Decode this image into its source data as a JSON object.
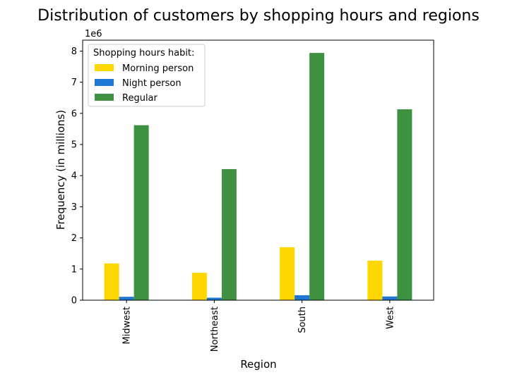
{
  "chart_data": {
    "type": "bar",
    "title": "Distribution of customers by shopping hours and regions",
    "xlabel": "Region",
    "ylabel": "Frequency (in millions)",
    "y_offset_label": "1e6",
    "categories": [
      "Midwest",
      "Northeast",
      "South",
      "West"
    ],
    "series": [
      {
        "name": "Morning person",
        "color": "#FFD700",
        "values": [
          1180000,
          880000,
          1700000,
          1270000
        ]
      },
      {
        "name": "Night person",
        "color": "#1F77D4",
        "values": [
          110000,
          80000,
          160000,
          120000
        ]
      },
      {
        "name": "Regular",
        "color": "#3F9142",
        "values": [
          5620000,
          4210000,
          7940000,
          6130000
        ]
      }
    ],
    "ylim": [
      0,
      8350000
    ],
    "yticks": [
      0,
      1000000,
      2000000,
      3000000,
      4000000,
      5000000,
      6000000,
      7000000,
      8000000
    ],
    "ytick_labels": [
      "0",
      "1",
      "2",
      "3",
      "4",
      "5",
      "6",
      "7",
      "8"
    ],
    "grid": false,
    "legend": {
      "title": "Shopping hours habit:",
      "placement": "top-left"
    }
  }
}
